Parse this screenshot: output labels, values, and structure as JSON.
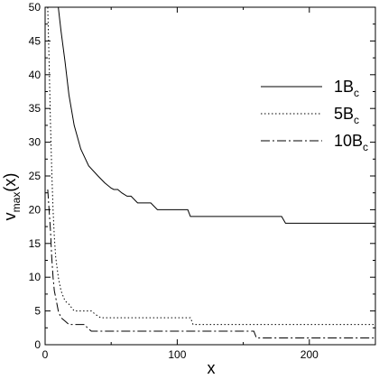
{
  "chart_data": {
    "type": "line",
    "xlabel": "x",
    "ylabel": "v",
    "ylabel_sub": "max",
    "ylabel_suffix": "(x)",
    "xlim": [
      0,
      250
    ],
    "ylim": [
      0,
      50
    ],
    "xticks": [
      0,
      100,
      200
    ],
    "xticks_minor": [
      50,
      150,
      250
    ],
    "yticks": [
      0,
      5,
      10,
      15,
      20,
      25,
      30,
      35,
      40,
      45,
      50
    ],
    "grid": false,
    "legend_position": "top-right",
    "series": [
      {
        "name": "1B",
        "name_sub": "c",
        "dash": "solid",
        "x": [
          10,
          12,
          15,
          18,
          22,
          27,
          33,
          40,
          45,
          50,
          52,
          55,
          58,
          62,
          65,
          70,
          75,
          80,
          85,
          90,
          95,
          100,
          108,
          110,
          120,
          130,
          140,
          150,
          160,
          170,
          179,
          182,
          190,
          200,
          210,
          220,
          230,
          240,
          250
        ],
        "y": [
          50,
          46.5,
          42,
          37,
          32.5,
          29,
          26.5,
          25,
          24,
          23.2,
          23,
          23,
          22.5,
          22,
          22,
          21,
          21,
          21,
          20,
          20,
          20,
          20,
          20,
          19,
          19,
          19,
          19,
          19,
          19,
          19,
          19,
          18,
          18,
          18,
          18,
          18,
          18,
          18,
          18
        ]
      },
      {
        "name": "5B",
        "name_sub": "c",
        "dash": "dotted",
        "x": [
          2,
          3,
          4,
          5,
          6,
          7,
          8,
          10,
          12,
          15,
          18,
          20,
          22,
          25,
          30,
          35,
          38,
          42,
          50,
          60,
          80,
          100,
          110,
          112,
          130,
          150,
          180,
          200,
          230,
          250
        ],
        "y": [
          50,
          42,
          33,
          26,
          20,
          16,
          13,
          10,
          8,
          6.5,
          6,
          5.5,
          5,
          5,
          5,
          5,
          4.5,
          4,
          4,
          4,
          4,
          4,
          4,
          3,
          3,
          3,
          3,
          3,
          3,
          3
        ]
      },
      {
        "name": "10B",
        "name_sub": "c",
        "dash": "dashdot",
        "x": [
          2,
          3,
          4,
          5,
          6,
          7,
          8,
          10,
          12,
          15,
          18,
          20,
          25,
          30,
          32,
          35,
          40,
          60,
          80,
          100,
          120,
          140,
          158,
          160,
          180,
          200,
          220,
          250
        ],
        "y": [
          23,
          20,
          17,
          13,
          10,
          8,
          7,
          5,
          4,
          3.5,
          3,
          3,
          3,
          3,
          2.5,
          2,
          2,
          2,
          2,
          2,
          2,
          2,
          2,
          1,
          1,
          1,
          1,
          1
        ]
      }
    ]
  }
}
